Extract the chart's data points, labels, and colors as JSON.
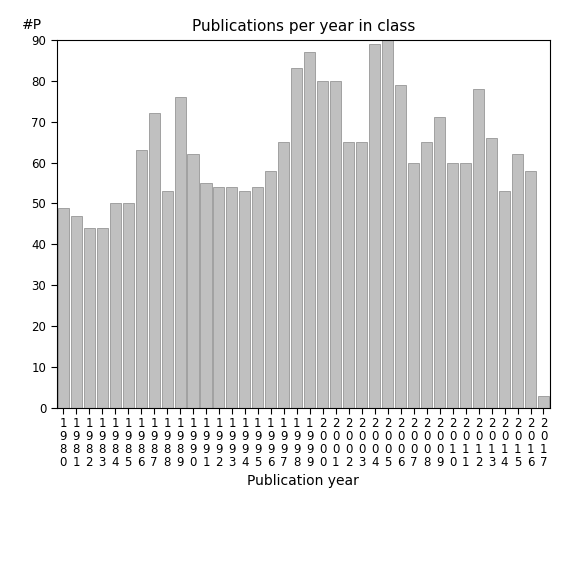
{
  "title": "Publications per year in class",
  "xlabel": "Publication year",
  "ylabel": "#P",
  "years": [
    1980,
    1981,
    1982,
    1983,
    1984,
    1985,
    1986,
    1987,
    1988,
    1989,
    1990,
    1991,
    1992,
    1993,
    1994,
    1995,
    1996,
    1997,
    1998,
    1999,
    2000,
    2001,
    2002,
    2003,
    2004,
    2005,
    2006,
    2007,
    2008,
    2009,
    2010,
    2011,
    2012,
    2013,
    2014,
    2015,
    2016,
    2017
  ],
  "values": [
    49,
    47,
    44,
    44,
    50,
    50,
    63,
    72,
    53,
    76,
    62,
    55,
    54,
    54,
    53,
    54,
    58,
    65,
    83,
    87,
    80,
    80,
    65,
    65,
    89,
    90,
    79,
    60,
    65,
    71,
    60,
    60,
    78,
    66,
    53,
    62,
    58,
    3
  ],
  "bar_color": "#c0c0c0",
  "bar_edgecolor": "#888888",
  "ylim": [
    0,
    90
  ],
  "yticks": [
    0,
    10,
    20,
    30,
    40,
    50,
    60,
    70,
    80,
    90
  ],
  "tick_label_fontsize": 8.5,
  "title_fontsize": 11,
  "axis_label_fontsize": 10
}
